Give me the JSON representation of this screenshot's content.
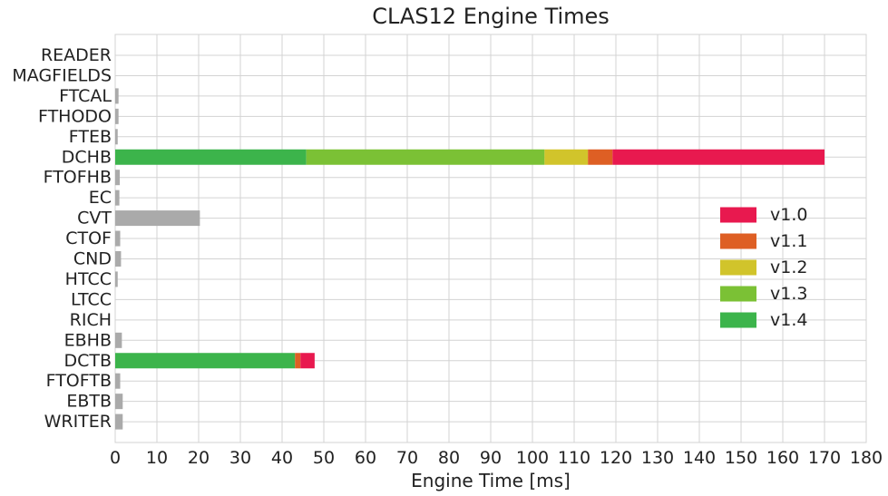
{
  "chart_data": {
    "type": "bar",
    "orientation": "horizontal",
    "stacked": true,
    "title": "CLAS12 Engine Times",
    "xlabel": "Engine Time [ms]",
    "ylabel": "",
    "xlim": [
      0,
      180
    ],
    "xticks": [
      0,
      10,
      20,
      30,
      40,
      50,
      60,
      70,
      80,
      90,
      100,
      110,
      120,
      130,
      140,
      150,
      160,
      170,
      180
    ],
    "grid": true,
    "legend_position": "right",
    "categories": [
      "READER",
      "MAGFIELDS",
      "FTCAL",
      "FTHODO",
      "FTEB",
      "DCHB",
      "FTOFHB",
      "EC",
      "CVT",
      "CTOF",
      "CND",
      "HTCC",
      "LTCC",
      "RICH",
      "EBHB",
      "DCTB",
      "FTOFTB",
      "EBTB",
      "WRITER"
    ],
    "series": [
      {
        "name": "v1.4",
        "color": "#3cb44b",
        "values": [
          0,
          0,
          0,
          0,
          0,
          45.8,
          0,
          0,
          0,
          0,
          0,
          0,
          0,
          0,
          0,
          43.1,
          0,
          0,
          0
        ]
      },
      {
        "name": "v1.3",
        "color": "#7bc135",
        "values": [
          0,
          0,
          0,
          0,
          0,
          57.1,
          0,
          0,
          0,
          0,
          0,
          0,
          0,
          0,
          0,
          0,
          0,
          0,
          0
        ]
      },
      {
        "name": "v1.2",
        "color": "#d1c42b",
        "values": [
          0,
          0,
          0,
          0,
          0,
          10.4,
          0,
          0,
          0,
          0,
          0,
          0,
          0,
          0,
          0,
          0,
          0,
          0,
          0
        ]
      },
      {
        "name": "v1.1",
        "color": "#de5f24",
        "values": [
          0,
          0,
          0,
          0,
          0,
          5.9,
          0,
          0,
          0,
          0,
          0,
          0,
          0,
          0,
          0,
          1.3,
          0,
          0,
          0
        ]
      },
      {
        "name": "v1.0",
        "color": "#e8194f",
        "values": [
          0,
          0,
          0,
          0,
          0,
          50.8,
          0,
          0,
          0,
          0,
          0,
          0,
          0,
          0,
          0,
          3.4,
          0,
          0,
          0
        ]
      },
      {
        "name": "",
        "color": "#aaaaaa",
        "values": [
          0,
          0,
          0.8,
          0.8,
          0.6,
          0,
          1.1,
          1.0,
          20.3,
          1.2,
          1.4,
          0.6,
          0,
          0,
          1.6,
          0,
          1.2,
          1.8,
          1.8
        ]
      }
    ],
    "legend": [
      {
        "label": "v1.0",
        "color": "#e8194f"
      },
      {
        "label": "v1.1",
        "color": "#de5f24"
      },
      {
        "label": "v1.2",
        "color": "#d1c42b"
      },
      {
        "label": "v1.3",
        "color": "#7bc135"
      },
      {
        "label": "v1.4",
        "color": "#3cb44b"
      }
    ]
  }
}
